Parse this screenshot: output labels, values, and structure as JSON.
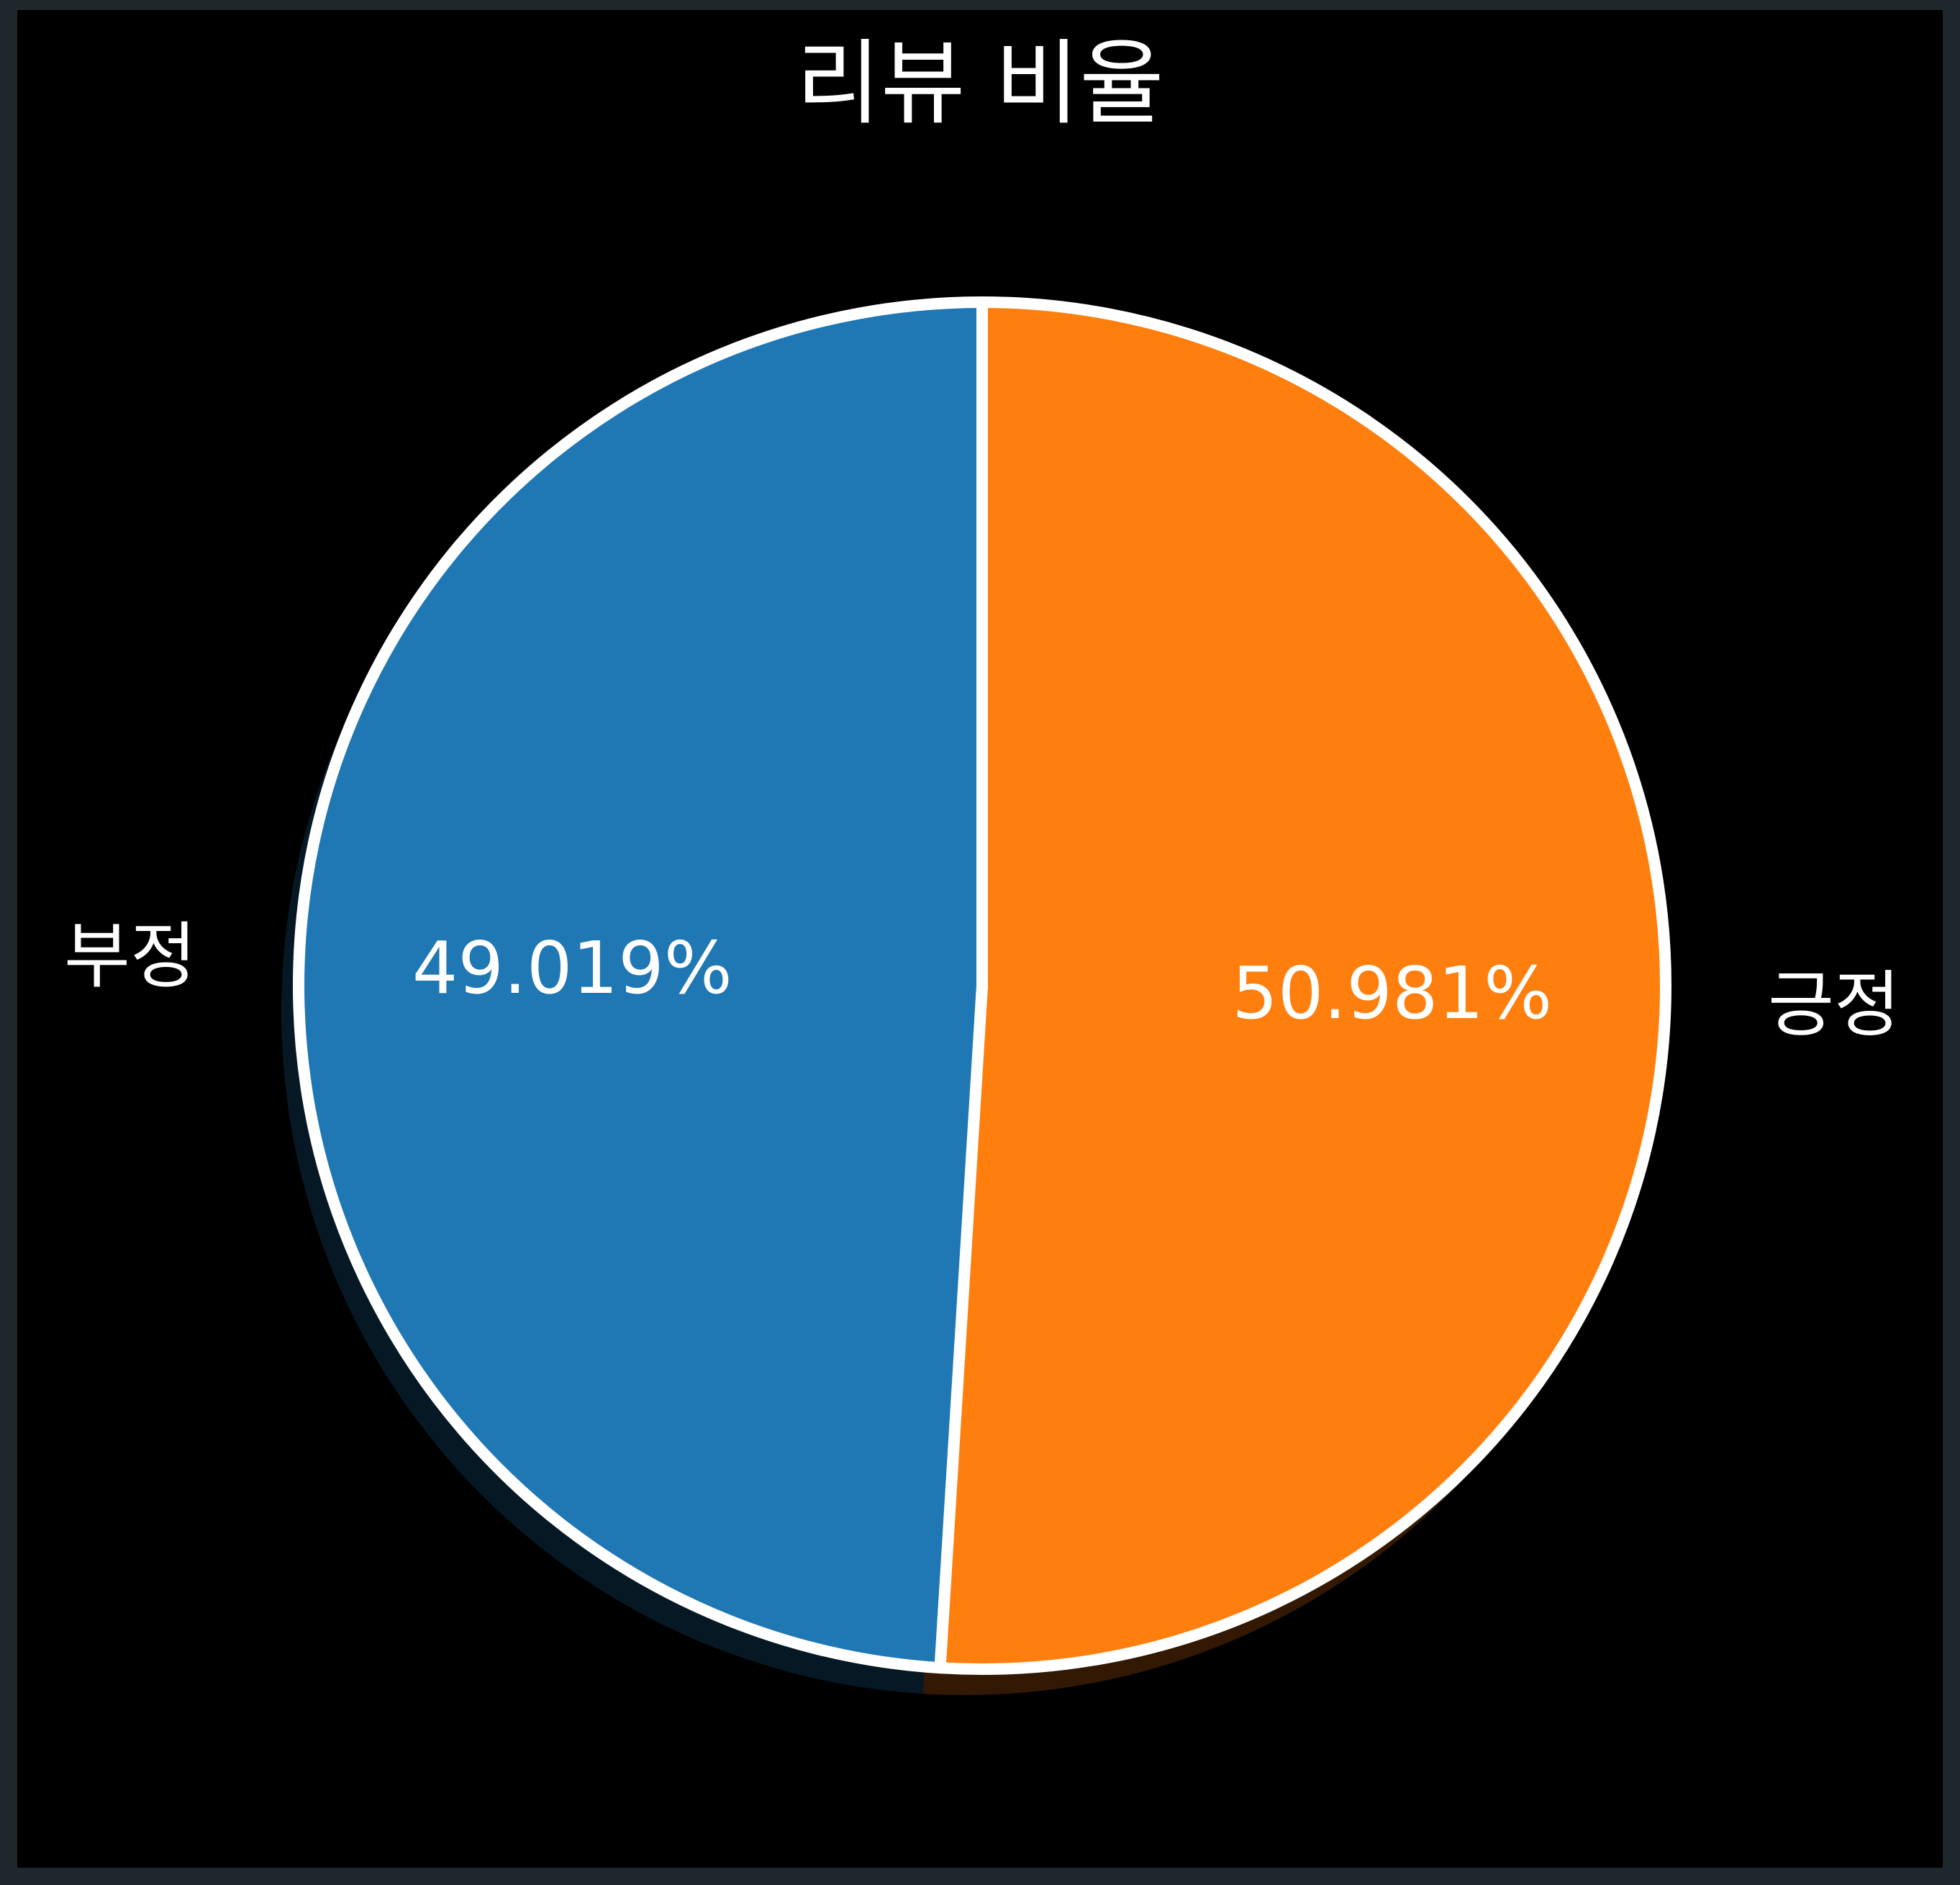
{
  "chart_data": {
    "type": "pie",
    "title": "리뷰 비율",
    "slices": [
      {
        "label": "긍정",
        "value": 50.981,
        "pct_label": "50.981%",
        "color": "#ff7f0e"
      },
      {
        "label": "부정",
        "value": 49.019,
        "pct_label": "49.019%",
        "color": "#1f77b4"
      }
    ],
    "start_angle": "top, clockwise",
    "edge_color": "#ffffff",
    "shadow": true
  },
  "colors": {
    "background": "#000000",
    "frame": "#1e282c",
    "text": "#ffffff"
  }
}
